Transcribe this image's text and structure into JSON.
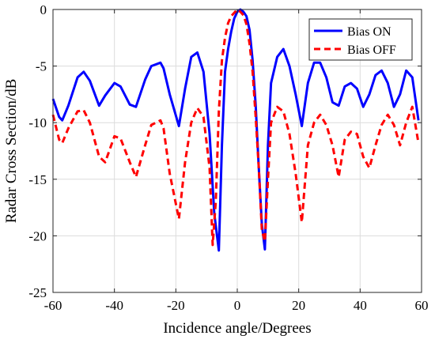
{
  "chart_data": {
    "type": "line",
    "title": "",
    "xlabel": "Incidence angle/Degrees",
    "ylabel": "Radar Cross Section/dB",
    "xlim": [
      -60,
      60
    ],
    "ylim": [
      -25,
      0
    ],
    "xticks": [
      -60,
      -40,
      -20,
      0,
      20,
      40,
      60
    ],
    "yticks": [
      0,
      -5,
      -10,
      -15,
      -20,
      -25
    ],
    "xtick_labels": [
      "-60",
      "-40",
      "-20",
      "0",
      "20",
      "40",
      "60"
    ],
    "ytick_labels": [
      "0",
      "-5",
      "-10",
      "-15",
      "-20",
      "-25"
    ],
    "grid": true,
    "legend": "top-right",
    "series": [
      {
        "name": "Bias ON",
        "color": "#0000ff",
        "style": "solid",
        "x": [
          -60,
          -58,
          -57,
          -55,
          -52,
          -50,
          -48,
          -45,
          -43,
          -40,
          -38,
          -35,
          -33,
          -30,
          -28,
          -25,
          -24,
          -22,
          -19,
          -17,
          -15,
          -13,
          -11,
          -9,
          -7.5,
          -6,
          -5,
          -4,
          -3,
          -2,
          -1,
          0,
          1,
          2,
          3,
          4,
          5,
          6,
          7,
          8,
          9,
          10,
          11,
          13,
          15,
          17,
          19,
          21,
          23,
          25,
          27,
          29,
          31,
          33,
          35,
          37,
          39,
          41,
          43,
          45,
          47,
          49,
          51,
          53,
          55,
          57,
          59
        ],
        "y": [
          -7.9,
          -9.5,
          -9.8,
          -8.5,
          -6.0,
          -5.5,
          -6.3,
          -8.5,
          -7.6,
          -6.5,
          -6.8,
          -8.4,
          -8.6,
          -6.2,
          -5.0,
          -4.7,
          -5.2,
          -7.5,
          -10.3,
          -7.0,
          -4.2,
          -3.8,
          -5.5,
          -11.0,
          -18.0,
          -21.3,
          -12.0,
          -5.5,
          -3.5,
          -2.0,
          -0.8,
          -0.2,
          0.0,
          -0.2,
          -0.6,
          -1.8,
          -4.5,
          -8.5,
          -14.0,
          -19.0,
          -21.2,
          -12.0,
          -6.5,
          -4.2,
          -3.5,
          -5.0,
          -7.5,
          -10.3,
          -6.5,
          -4.7,
          -4.7,
          -6.0,
          -8.2,
          -8.5,
          -6.8,
          -6.5,
          -7.0,
          -8.6,
          -7.5,
          -5.8,
          -5.4,
          -6.5,
          -8.6,
          -7.5,
          -5.4,
          -6.0,
          -9.8
        ]
      },
      {
        "name": "Bias OFF",
        "color": "#ff0000",
        "style": "dashed",
        "x": [
          -60,
          -58,
          -57,
          -55,
          -52,
          -50,
          -48,
          -45,
          -43,
          -40,
          -38,
          -35,
          -33,
          -30,
          -28,
          -25,
          -24,
          -22,
          -19,
          -17,
          -15,
          -13,
          -11,
          -9,
          -8,
          -7,
          -6,
          -5,
          -4,
          -3,
          -2,
          -1,
          0,
          1,
          2,
          3,
          4,
          5,
          6,
          7,
          8,
          9,
          10,
          11,
          13,
          15,
          17,
          19,
          21,
          23,
          25,
          27,
          29,
          31,
          33,
          35,
          37,
          39,
          41,
          43,
          45,
          47,
          49,
          51,
          53,
          55,
          57,
          59
        ],
        "y": [
          -9.3,
          -11.5,
          -11.8,
          -10.5,
          -9.0,
          -8.9,
          -10.0,
          -13.0,
          -13.5,
          -11.2,
          -11.4,
          -13.5,
          -14.8,
          -12.0,
          -10.2,
          -9.8,
          -10.5,
          -14.5,
          -18.5,
          -13.5,
          -10.0,
          -8.7,
          -9.5,
          -14.0,
          -20.8,
          -17.0,
          -9.0,
          -4.5,
          -2.5,
          -1.2,
          -0.6,
          -0.3,
          0.0,
          -0.2,
          -0.5,
          -1.3,
          -3.0,
          -5.5,
          -9.5,
          -14.0,
          -19.5,
          -20.5,
          -15.0,
          -10.0,
          -8.6,
          -9.0,
          -11.0,
          -14.5,
          -18.8,
          -12.0,
          -10.0,
          -9.3,
          -10.2,
          -12.0,
          -14.8,
          -11.5,
          -10.8,
          -11.0,
          -13.0,
          -14.0,
          -12.0,
          -10.2,
          -9.3,
          -10.2,
          -12.0,
          -10.0,
          -8.6,
          -11.8
        ]
      }
    ]
  }
}
